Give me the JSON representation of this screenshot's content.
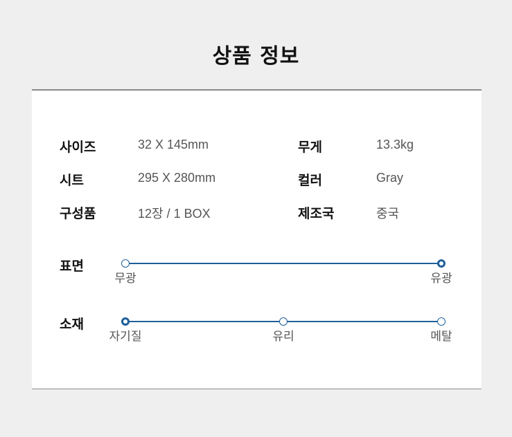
{
  "title": "상품 정보",
  "specs": [
    {
      "label": "사이즈",
      "value": "32 X 145mm"
    },
    {
      "label": "무게",
      "value": "13.3kg"
    },
    {
      "label": "시트",
      "value": "295 X 280mm"
    },
    {
      "label": "컬러",
      "value": "Gray"
    },
    {
      "label": "구성품",
      "value": "12장 / 1 BOX"
    },
    {
      "label": "제조국",
      "value": "중국"
    }
  ],
  "scales": [
    {
      "label": "표면",
      "options": [
        "무광",
        "유광"
      ],
      "selected_index": 1
    },
    {
      "label": "소재",
      "options": [
        "자기질",
        "유리",
        "메탈"
      ],
      "selected_index": 0
    }
  ],
  "accent_color": "#1e5f9a"
}
